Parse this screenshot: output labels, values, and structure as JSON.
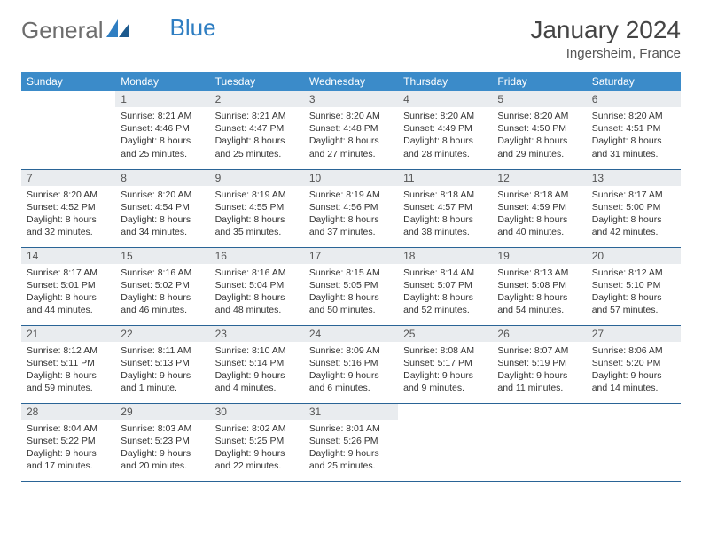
{
  "brand": {
    "part1": "General",
    "part2": "Blue"
  },
  "title": "January 2024",
  "location": "Ingersheim, France",
  "colors": {
    "header_bg": "#3b8bc9",
    "header_text": "#ffffff",
    "daynum_bg": "#e9ecef",
    "border": "#2a6496",
    "logo_gray": "#6d6d6d",
    "logo_blue": "#2f7ec2"
  },
  "weekdays": [
    "Sunday",
    "Monday",
    "Tuesday",
    "Wednesday",
    "Thursday",
    "Friday",
    "Saturday"
  ],
  "weeks": [
    [
      {
        "day": "",
        "sunrise": "",
        "sunset": "",
        "daylight": ""
      },
      {
        "day": "1",
        "sunrise": "Sunrise: 8:21 AM",
        "sunset": "Sunset: 4:46 PM",
        "daylight": "Daylight: 8 hours and 25 minutes."
      },
      {
        "day": "2",
        "sunrise": "Sunrise: 8:21 AM",
        "sunset": "Sunset: 4:47 PM",
        "daylight": "Daylight: 8 hours and 25 minutes."
      },
      {
        "day": "3",
        "sunrise": "Sunrise: 8:20 AM",
        "sunset": "Sunset: 4:48 PM",
        "daylight": "Daylight: 8 hours and 27 minutes."
      },
      {
        "day": "4",
        "sunrise": "Sunrise: 8:20 AM",
        "sunset": "Sunset: 4:49 PM",
        "daylight": "Daylight: 8 hours and 28 minutes."
      },
      {
        "day": "5",
        "sunrise": "Sunrise: 8:20 AM",
        "sunset": "Sunset: 4:50 PM",
        "daylight": "Daylight: 8 hours and 29 minutes."
      },
      {
        "day": "6",
        "sunrise": "Sunrise: 8:20 AM",
        "sunset": "Sunset: 4:51 PM",
        "daylight": "Daylight: 8 hours and 31 minutes."
      }
    ],
    [
      {
        "day": "7",
        "sunrise": "Sunrise: 8:20 AM",
        "sunset": "Sunset: 4:52 PM",
        "daylight": "Daylight: 8 hours and 32 minutes."
      },
      {
        "day": "8",
        "sunrise": "Sunrise: 8:20 AM",
        "sunset": "Sunset: 4:54 PM",
        "daylight": "Daylight: 8 hours and 34 minutes."
      },
      {
        "day": "9",
        "sunrise": "Sunrise: 8:19 AM",
        "sunset": "Sunset: 4:55 PM",
        "daylight": "Daylight: 8 hours and 35 minutes."
      },
      {
        "day": "10",
        "sunrise": "Sunrise: 8:19 AM",
        "sunset": "Sunset: 4:56 PM",
        "daylight": "Daylight: 8 hours and 37 minutes."
      },
      {
        "day": "11",
        "sunrise": "Sunrise: 8:18 AM",
        "sunset": "Sunset: 4:57 PM",
        "daylight": "Daylight: 8 hours and 38 minutes."
      },
      {
        "day": "12",
        "sunrise": "Sunrise: 8:18 AM",
        "sunset": "Sunset: 4:59 PM",
        "daylight": "Daylight: 8 hours and 40 minutes."
      },
      {
        "day": "13",
        "sunrise": "Sunrise: 8:17 AM",
        "sunset": "Sunset: 5:00 PM",
        "daylight": "Daylight: 8 hours and 42 minutes."
      }
    ],
    [
      {
        "day": "14",
        "sunrise": "Sunrise: 8:17 AM",
        "sunset": "Sunset: 5:01 PM",
        "daylight": "Daylight: 8 hours and 44 minutes."
      },
      {
        "day": "15",
        "sunrise": "Sunrise: 8:16 AM",
        "sunset": "Sunset: 5:02 PM",
        "daylight": "Daylight: 8 hours and 46 minutes."
      },
      {
        "day": "16",
        "sunrise": "Sunrise: 8:16 AM",
        "sunset": "Sunset: 5:04 PM",
        "daylight": "Daylight: 8 hours and 48 minutes."
      },
      {
        "day": "17",
        "sunrise": "Sunrise: 8:15 AM",
        "sunset": "Sunset: 5:05 PM",
        "daylight": "Daylight: 8 hours and 50 minutes."
      },
      {
        "day": "18",
        "sunrise": "Sunrise: 8:14 AM",
        "sunset": "Sunset: 5:07 PM",
        "daylight": "Daylight: 8 hours and 52 minutes."
      },
      {
        "day": "19",
        "sunrise": "Sunrise: 8:13 AM",
        "sunset": "Sunset: 5:08 PM",
        "daylight": "Daylight: 8 hours and 54 minutes."
      },
      {
        "day": "20",
        "sunrise": "Sunrise: 8:12 AM",
        "sunset": "Sunset: 5:10 PM",
        "daylight": "Daylight: 8 hours and 57 minutes."
      }
    ],
    [
      {
        "day": "21",
        "sunrise": "Sunrise: 8:12 AM",
        "sunset": "Sunset: 5:11 PM",
        "daylight": "Daylight: 8 hours and 59 minutes."
      },
      {
        "day": "22",
        "sunrise": "Sunrise: 8:11 AM",
        "sunset": "Sunset: 5:13 PM",
        "daylight": "Daylight: 9 hours and 1 minute."
      },
      {
        "day": "23",
        "sunrise": "Sunrise: 8:10 AM",
        "sunset": "Sunset: 5:14 PM",
        "daylight": "Daylight: 9 hours and 4 minutes."
      },
      {
        "day": "24",
        "sunrise": "Sunrise: 8:09 AM",
        "sunset": "Sunset: 5:16 PM",
        "daylight": "Daylight: 9 hours and 6 minutes."
      },
      {
        "day": "25",
        "sunrise": "Sunrise: 8:08 AM",
        "sunset": "Sunset: 5:17 PM",
        "daylight": "Daylight: 9 hours and 9 minutes."
      },
      {
        "day": "26",
        "sunrise": "Sunrise: 8:07 AM",
        "sunset": "Sunset: 5:19 PM",
        "daylight": "Daylight: 9 hours and 11 minutes."
      },
      {
        "day": "27",
        "sunrise": "Sunrise: 8:06 AM",
        "sunset": "Sunset: 5:20 PM",
        "daylight": "Daylight: 9 hours and 14 minutes."
      }
    ],
    [
      {
        "day": "28",
        "sunrise": "Sunrise: 8:04 AM",
        "sunset": "Sunset: 5:22 PM",
        "daylight": "Daylight: 9 hours and 17 minutes."
      },
      {
        "day": "29",
        "sunrise": "Sunrise: 8:03 AM",
        "sunset": "Sunset: 5:23 PM",
        "daylight": "Daylight: 9 hours and 20 minutes."
      },
      {
        "day": "30",
        "sunrise": "Sunrise: 8:02 AM",
        "sunset": "Sunset: 5:25 PM",
        "daylight": "Daylight: 9 hours and 22 minutes."
      },
      {
        "day": "31",
        "sunrise": "Sunrise: 8:01 AM",
        "sunset": "Sunset: 5:26 PM",
        "daylight": "Daylight: 9 hours and 25 minutes."
      },
      {
        "day": "",
        "sunrise": "",
        "sunset": "",
        "daylight": ""
      },
      {
        "day": "",
        "sunrise": "",
        "sunset": "",
        "daylight": ""
      },
      {
        "day": "",
        "sunrise": "",
        "sunset": "",
        "daylight": ""
      }
    ]
  ]
}
